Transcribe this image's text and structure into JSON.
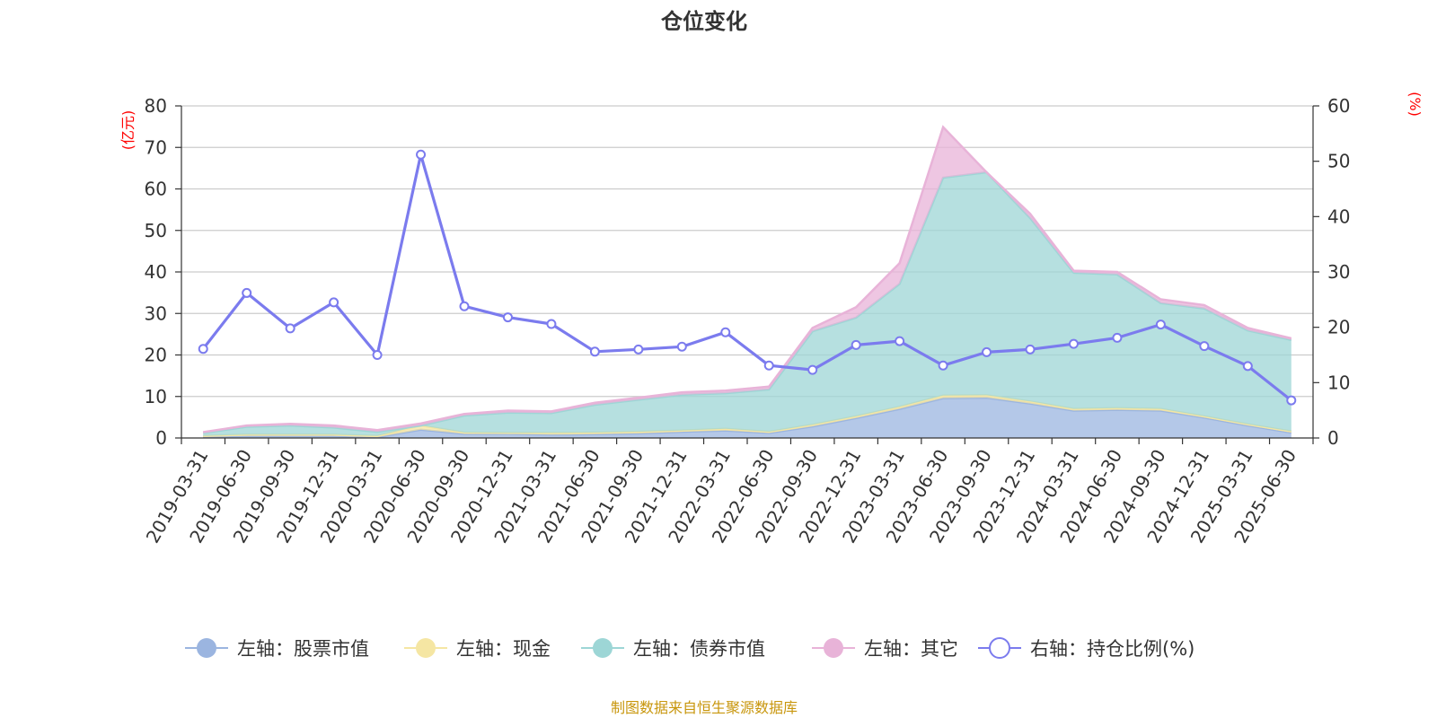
{
  "chart_data": {
    "type": "area",
    "title": "仓位变化",
    "source": "制图数据来自恒生聚源数据库",
    "y_left_unit": "(亿元)",
    "y_right_unit": "(%)",
    "ylim_left": [
      0,
      80
    ],
    "ylim_right": [
      0,
      60
    ],
    "y_left_ticks": [
      "0",
      "10",
      "20",
      "30",
      "40",
      "50",
      "60",
      "70",
      "80"
    ],
    "y_right_ticks": [
      "0",
      "10",
      "20",
      "30",
      "40",
      "50",
      "60"
    ],
    "categories": [
      "2019-03-31",
      "2019-06-30",
      "2019-09-30",
      "2019-12-31",
      "2020-03-31",
      "2020-06-30",
      "2020-09-30",
      "2020-12-31",
      "2021-03-31",
      "2021-06-30",
      "2021-09-30",
      "2021-12-31",
      "2022-03-31",
      "2022-06-30",
      "2022-09-30",
      "2022-12-31",
      "2023-03-31",
      "2023-06-30",
      "2023-09-30",
      "2023-12-31",
      "2024-03-31",
      "2024-06-30",
      "2024-09-30",
      "2024-12-31",
      "2025-03-31",
      "2025-06-30"
    ],
    "series": [
      {
        "name": "左轴：股票市值",
        "axis": "left",
        "color": "#9bb5e0",
        "values": [
          0.3,
          0.5,
          0.5,
          0.5,
          0.2,
          2.0,
          1.0,
          1.0,
          0.8,
          0.9,
          1.1,
          1.5,
          1.8,
          1.2,
          2.8,
          4.8,
          7.0,
          9.6,
          9.7,
          8.3,
          6.6,
          6.8,
          6.6,
          4.9,
          3.0,
          1.3
        ]
      },
      {
        "name": "左轴：现金",
        "axis": "left",
        "color": "#f5e6a3",
        "values": [
          0.2,
          0.3,
          0.3,
          0.3,
          0.3,
          1.0,
          0.3,
          0.2,
          0.4,
          0.4,
          0.4,
          0.3,
          0.4,
          0.3,
          0.4,
          0.4,
          0.5,
          0.6,
          0.6,
          0.5,
          0.4,
          0.4,
          0.4,
          0.3,
          0.3,
          0.3
        ]
      },
      {
        "name": "左轴：债券市值",
        "axis": "left",
        "color": "#9dd6d6",
        "values": [
          0.7,
          1.9,
          2.2,
          1.7,
          1.0,
          0.0,
          4.1,
          4.9,
          4.8,
          6.7,
          7.7,
          8.6,
          8.6,
          10.2,
          22.5,
          23.8,
          29.6,
          52.5,
          53.7,
          44.2,
          32.8,
          32.2,
          25.5,
          26.0,
          22.6,
          22.0
        ]
      },
      {
        "name": "左轴：其它",
        "axis": "left",
        "color": "#e8b3d8",
        "values": [
          0.2,
          0.3,
          0.4,
          0.5,
          0.4,
          0.5,
          0.4,
          0.5,
          0.4,
          0.5,
          0.5,
          0.6,
          0.6,
          0.7,
          0.8,
          2.5,
          5.0,
          12.2,
          0.0,
          1.0,
          0.5,
          0.6,
          0.9,
          0.8,
          0.6,
          0.4
        ]
      },
      {
        "name": "右轴：持仓比例(%)",
        "axis": "right",
        "color": "#7b7bee",
        "values": [
          16.1,
          26.2,
          19.8,
          24.5,
          15.0,
          51.2,
          23.8,
          21.8,
          20.6,
          15.6,
          16.0,
          16.5,
          19.1,
          13.1,
          12.3,
          16.8,
          17.5,
          13.1,
          15.5,
          16.0,
          17.0,
          18.1,
          20.5,
          16.6,
          13.0,
          6.8
        ]
      }
    ]
  }
}
